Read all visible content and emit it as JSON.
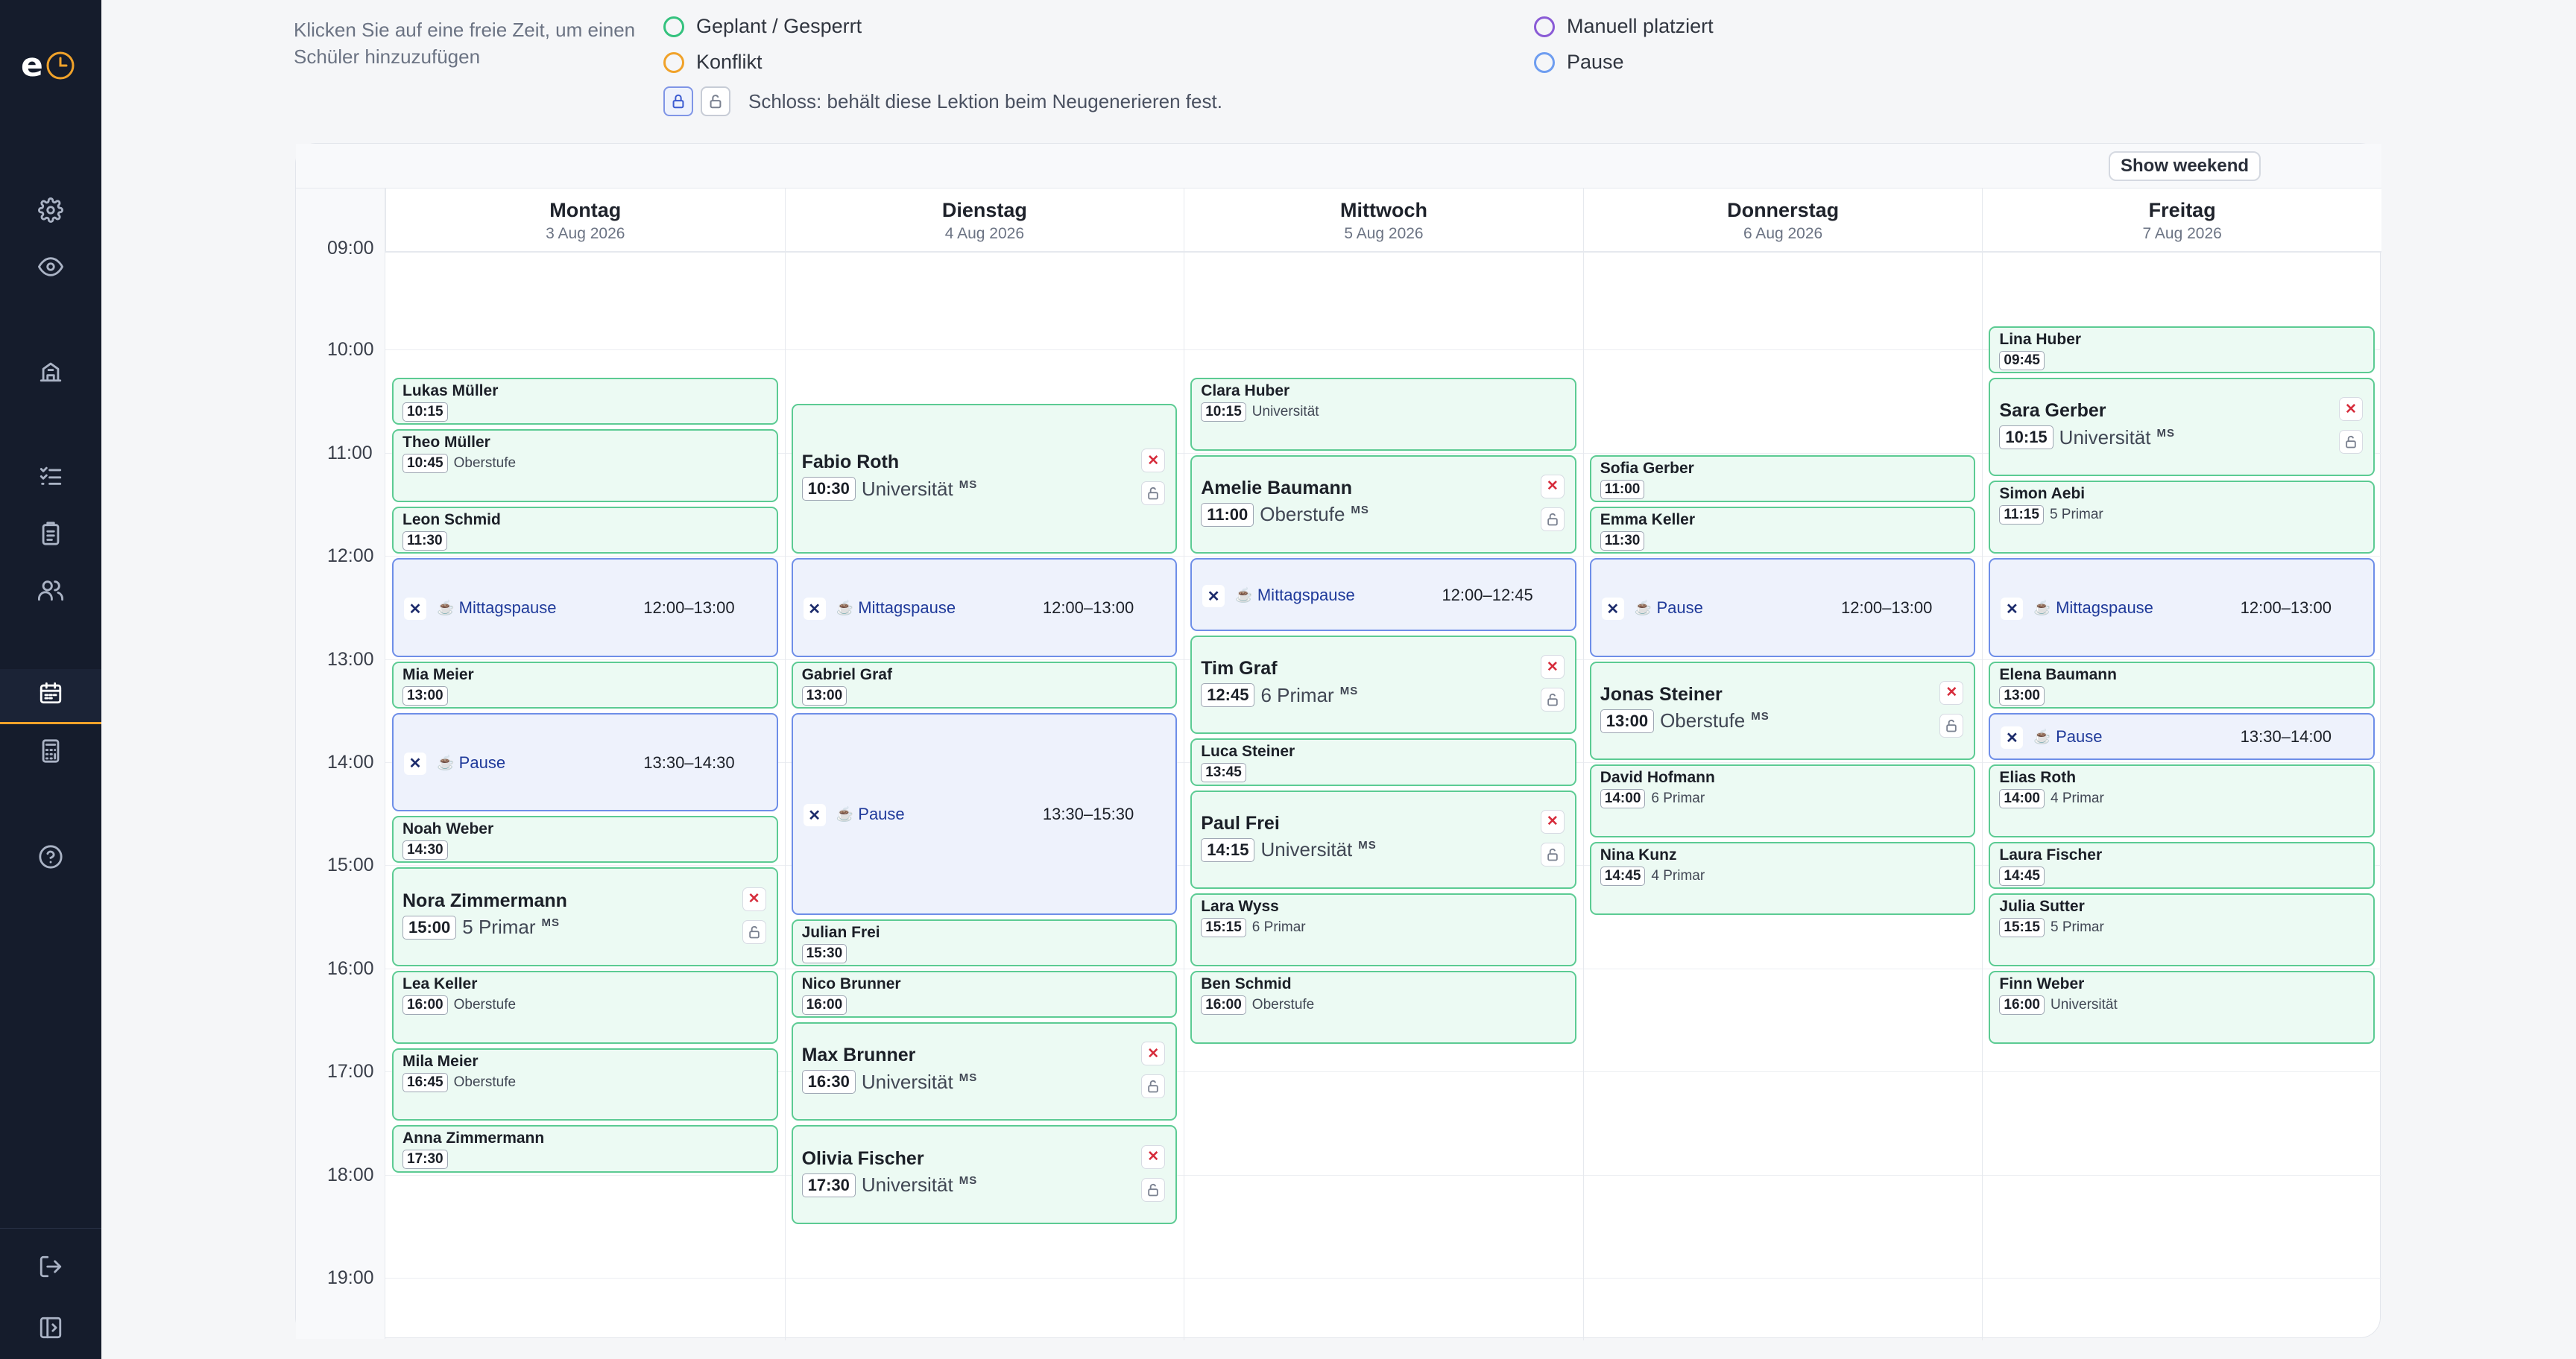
{
  "app": {
    "logo_letter": "e"
  },
  "hint": "Klicken Sie auf eine freie Zeit, um einen Schüler hinzuzufügen",
  "legend": [
    {
      "label": "Geplant / Gesperrt",
      "color": "#34c27e"
    },
    {
      "label": "Konflikt",
      "color": "#f0a22a"
    },
    {
      "label": "Manuell platziert",
      "color": "#8a5bd6"
    },
    {
      "label": "Pause",
      "color": "#6e9df0"
    }
  ],
  "lock_hint": "Schloss: behält diese Lektion beim Neugenerieren fest.",
  "toolbar": {
    "show_weekend": "Show weekend"
  },
  "hours": [
    "09:00",
    "10:00",
    "11:00",
    "12:00",
    "13:00",
    "14:00",
    "15:00",
    "16:00",
    "17:00",
    "18:00",
    "19:00"
  ],
  "days": [
    {
      "name": "Montag",
      "date": "3 Aug 2026"
    },
    {
      "name": "Dienstag",
      "date": "4 Aug 2026"
    },
    {
      "name": "Mittwoch",
      "date": "5 Aug 2026"
    },
    {
      "name": "Donnerstag",
      "date": "6 Aug 2026"
    },
    {
      "name": "Freitag",
      "date": "7 Aug 2026"
    }
  ],
  "events": [
    {
      "day": 0,
      "start": "10:15",
      "end": "10:45",
      "name": "Lukas Müller",
      "time": "10:15",
      "level": ""
    },
    {
      "day": 0,
      "start": "10:45",
      "end": "11:30",
      "name": "Theo Müller",
      "time": "10:45",
      "level": "Oberstufe"
    },
    {
      "day": 0,
      "start": "11:30",
      "end": "12:00",
      "name": "Leon Schmid",
      "time": "11:30",
      "level": ""
    },
    {
      "day": 0,
      "start": "12:00",
      "end": "13:00",
      "type": "break",
      "label": "Mittagspause",
      "range": "12:00–13:00"
    },
    {
      "day": 0,
      "start": "13:00",
      "end": "13:30",
      "name": "Mia Meier",
      "time": "13:00",
      "level": ""
    },
    {
      "day": 0,
      "start": "13:30",
      "end": "14:30",
      "type": "break",
      "label": "Pause",
      "range": "13:30–14:30"
    },
    {
      "day": 0,
      "start": "14:30",
      "end": "15:00",
      "name": "Noah Weber",
      "time": "14:30",
      "level": ""
    },
    {
      "day": 0,
      "start": "15:00",
      "end": "16:00",
      "name": "Nora Zimmermann",
      "time": "15:00",
      "level": "5 Primar",
      "ms": "MS",
      "manual": true
    },
    {
      "day": 0,
      "start": "16:00",
      "end": "16:45",
      "name": "Lea Keller",
      "time": "16:00",
      "level": "Oberstufe"
    },
    {
      "day": 0,
      "start": "16:45",
      "end": "17:30",
      "name": "Mila Meier",
      "time": "16:45",
      "level": "Oberstufe"
    },
    {
      "day": 0,
      "start": "17:30",
      "end": "18:00",
      "name": "Anna Zimmermann",
      "time": "17:30",
      "level": ""
    },
    {
      "day": 1,
      "start": "10:30",
      "end": "12:00",
      "name": "Fabio Roth",
      "time": "10:30",
      "level": "Universität",
      "ms": "MS",
      "manual": true
    },
    {
      "day": 1,
      "start": "12:00",
      "end": "13:00",
      "type": "break",
      "label": "Mittagspause",
      "range": "12:00–13:00"
    },
    {
      "day": 1,
      "start": "13:00",
      "end": "13:30",
      "name": "Gabriel Graf",
      "time": "13:00",
      "level": ""
    },
    {
      "day": 1,
      "start": "13:30",
      "end": "15:30",
      "type": "break",
      "label": "Pause",
      "range": "13:30–15:30"
    },
    {
      "day": 1,
      "start": "15:30",
      "end": "16:00",
      "name": "Julian Frei",
      "time": "15:30",
      "level": ""
    },
    {
      "day": 1,
      "start": "16:00",
      "end": "16:30",
      "name": "Nico Brunner",
      "time": "16:00",
      "level": ""
    },
    {
      "day": 1,
      "start": "16:30",
      "end": "17:30",
      "name": "Max Brunner",
      "time": "16:30",
      "level": "Universität",
      "ms": "MS",
      "manual": true
    },
    {
      "day": 1,
      "start": "17:30",
      "end": "18:30",
      "name": "Olivia Fischer",
      "time": "17:30",
      "level": "Universität",
      "ms": "MS",
      "manual": true
    },
    {
      "day": 2,
      "start": "10:15",
      "end": "11:00",
      "name": "Clara Huber",
      "time": "10:15",
      "level": "Universität"
    },
    {
      "day": 2,
      "start": "11:00",
      "end": "12:00",
      "name": "Amelie Baumann",
      "time": "11:00",
      "level": "Oberstufe",
      "ms": "MS",
      "manual": true
    },
    {
      "day": 2,
      "start": "12:00",
      "end": "12:45",
      "type": "break",
      "label": "Mittagspause",
      "range": "12:00–12:45"
    },
    {
      "day": 2,
      "start": "12:45",
      "end": "13:45",
      "name": "Tim Graf",
      "time": "12:45",
      "level": "6 Primar",
      "ms": "MS",
      "manual": true
    },
    {
      "day": 2,
      "start": "13:45",
      "end": "14:15",
      "name": "Luca Steiner",
      "time": "13:45",
      "level": ""
    },
    {
      "day": 2,
      "start": "14:15",
      "end": "15:15",
      "name": "Paul Frei",
      "time": "14:15",
      "level": "Universität",
      "ms": "MS",
      "manual": true
    },
    {
      "day": 2,
      "start": "15:15",
      "end": "16:00",
      "name": "Lara Wyss",
      "time": "15:15",
      "level": "6 Primar"
    },
    {
      "day": 2,
      "start": "16:00",
      "end": "16:45",
      "name": "Ben Schmid",
      "time": "16:00",
      "level": "Oberstufe"
    },
    {
      "day": 3,
      "start": "11:00",
      "end": "11:30",
      "name": "Sofia Gerber",
      "time": "11:00",
      "level": ""
    },
    {
      "day": 3,
      "start": "11:30",
      "end": "12:00",
      "name": "Emma Keller",
      "time": "11:30",
      "level": ""
    },
    {
      "day": 3,
      "start": "12:00",
      "end": "13:00",
      "type": "break",
      "label": "Pause",
      "range": "12:00–13:00"
    },
    {
      "day": 3,
      "start": "13:00",
      "end": "14:00",
      "name": "Jonas Steiner",
      "time": "13:00",
      "level": "Oberstufe",
      "ms": "MS",
      "manual": true
    },
    {
      "day": 3,
      "start": "14:00",
      "end": "14:45",
      "name": "David Hofmann",
      "time": "14:00",
      "level": "6 Primar"
    },
    {
      "day": 3,
      "start": "14:45",
      "end": "15:30",
      "name": "Nina Kunz",
      "time": "14:45",
      "level": "4 Primar"
    },
    {
      "day": 4,
      "start": "09:45",
      "end": "10:15",
      "name": "Lina Huber",
      "time": "09:45",
      "level": ""
    },
    {
      "day": 4,
      "start": "10:15",
      "end": "11:15",
      "name": "Sara Gerber",
      "time": "10:15",
      "level": "Universität",
      "ms": "MS",
      "manual": true
    },
    {
      "day": 4,
      "start": "11:15",
      "end": "12:00",
      "name": "Simon Aebi",
      "time": "11:15",
      "level": "5 Primar"
    },
    {
      "day": 4,
      "start": "12:00",
      "end": "13:00",
      "type": "break",
      "label": "Mittagspause",
      "range": "12:00–13:00"
    },
    {
      "day": 4,
      "start": "13:00",
      "end": "13:30",
      "name": "Elena Baumann",
      "time": "13:00",
      "level": ""
    },
    {
      "day": 4,
      "start": "13:30",
      "end": "14:00",
      "type": "break",
      "label": "Pause",
      "range": "13:30–14:00"
    },
    {
      "day": 4,
      "start": "14:00",
      "end": "14:45",
      "name": "Elias Roth",
      "time": "14:00",
      "level": "4 Primar"
    },
    {
      "day": 4,
      "start": "14:45",
      "end": "15:15",
      "name": "Laura Fischer",
      "time": "14:45",
      "level": ""
    },
    {
      "day": 4,
      "start": "15:15",
      "end": "16:00",
      "name": "Julia Sutter",
      "time": "15:15",
      "level": "5 Primar"
    },
    {
      "day": 4,
      "start": "16:00",
      "end": "16:45",
      "name": "Finn Weber",
      "time": "16:00",
      "level": "Universität"
    }
  ]
}
